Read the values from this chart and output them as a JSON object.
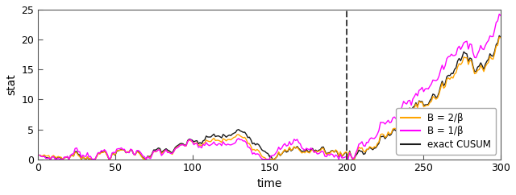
{
  "t_start": 1,
  "t_end": 300,
  "change_point": 200,
  "xlim": [
    0,
    300
  ],
  "ylim": [
    0,
    25
  ],
  "yticks": [
    0,
    5,
    10,
    15,
    20,
    25
  ],
  "xticks": [
    0,
    50,
    100,
    150,
    200,
    250,
    300
  ],
  "xlabel": "time",
  "ylabel": "stat",
  "dashed_line_x": 200,
  "color_orange": "#FFA500",
  "color_magenta": "#FF00FF",
  "color_black": "#1a1a1a",
  "label_orange": "B = 2/β",
  "label_magenta": "B = 1/β",
  "label_black": "exact CUSUM",
  "linewidth": 1.0,
  "legend_fontsize": 8.5,
  "axis_fontsize": 10,
  "figsize": [
    6.4,
    2.42
  ],
  "dpi": 100
}
